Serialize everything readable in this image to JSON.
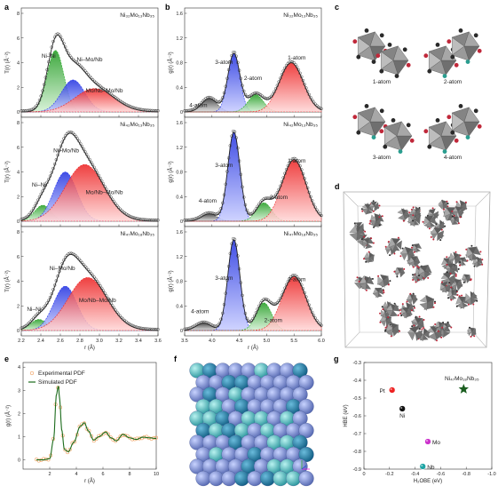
{
  "panel_labels": {
    "a": "a",
    "b": "b",
    "c": "c",
    "d": "d",
    "e": "e",
    "f": "f",
    "g": "g"
  },
  "chart_data": [
    {
      "panel": "a",
      "type": "area",
      "xlabel": "r (Å)",
      "ylabel": "T(r) (Å⁻²)",
      "xlim": [
        2.2,
        3.6
      ],
      "ylim": [
        0,
        8
      ],
      "xticks": [
        "2.2",
        "2.4",
        "2.6",
        "2.8",
        "3.0",
        "3.2",
        "3.4",
        "3.6"
      ],
      "yticks": [
        "0",
        "2",
        "4",
        "6",
        "8"
      ],
      "subplots": [
        {
          "composition": "Ni₃₂Mo₁₃Nb₃₅",
          "total": {
            "peak_x": 2.62,
            "peak_y": 8.0
          },
          "components": [
            {
              "name": "Ni–Ni",
              "color": "#22aa22",
              "center": 2.55,
              "height": 5.0
            },
            {
              "name": "Ni–Mo/Nb",
              "color": "#2233ee",
              "center": 2.73,
              "height": 2.6
            },
            {
              "name": "Mo/Nb–Mo/Nb",
              "color": "#ee2222",
              "center": 2.95,
              "height": 1.9
            }
          ]
        },
        {
          "composition": "Ni₄₂Mo₁₃Nb₃₅",
          "total": {
            "peak_x": 2.75,
            "peak_y": 7.4
          },
          "components": [
            {
              "name": "Ni–Ni",
              "color": "#22aa22",
              "center": 2.42,
              "height": 1.3
            },
            {
              "name": "Ni–Mo/Nb",
              "color": "#2233ee",
              "center": 2.65,
              "height": 4.0
            },
            {
              "name": "Mo/Nb–Mo/Nb",
              "color": "#ee2222",
              "center": 2.85,
              "height": 4.6
            }
          ]
        },
        {
          "composition": "Ni₄₇Mo₁₈Nb₃₅",
          "total": {
            "peak_x": 2.78,
            "peak_y": 7.4
          },
          "components": [
            {
              "name": "Ni–Ni",
              "color": "#22aa22",
              "center": 2.38,
              "height": 0.9
            },
            {
              "name": "Ni–Mo/Nb",
              "color": "#2233ee",
              "center": 2.65,
              "height": 3.6
            },
            {
              "name": "Mo/Nb–Mo/Nb",
              "color": "#ee2222",
              "center": 2.88,
              "height": 4.3
            }
          ]
        }
      ]
    },
    {
      "panel": "b",
      "type": "area",
      "xlabel": "r (Å)",
      "ylabel": "g(r) (Å⁻²)",
      "xlim": [
        3.5,
        6.0
      ],
      "ylim": [
        0,
        1.6
      ],
      "xticks": [
        "3.5",
        "4.0",
        "4.5",
        "5.0",
        "5.5",
        "6.0"
      ],
      "yticks": [
        "0",
        "0.4",
        "0.8",
        "1.2",
        "1.6"
      ],
      "subplots": [
        {
          "composition": "Ni₃₂Mo₁₃Nb₃₅",
          "components": [
            {
              "name": "4-atom",
              "color": "#555555",
              "center": 3.95,
              "height": 0.22
            },
            {
              "name": "3-atom",
              "color": "#2233ee",
              "center": 4.4,
              "height": 0.95
            },
            {
              "name": "2-atom",
              "color": "#22aa22",
              "center": 4.8,
              "height": 0.28
            },
            {
              "name": "1-atom",
              "color": "#ee2222",
              "center": 5.45,
              "height": 0.8
            }
          ]
        },
        {
          "composition": "Ni₄₂Mo₁₃Nb₃₅",
          "components": [
            {
              "name": "4-atom",
              "color": "#555555",
              "center": 3.95,
              "height": 0.12
            },
            {
              "name": "3-atom",
              "color": "#2233ee",
              "center": 4.4,
              "height": 1.45
            },
            {
              "name": "2-atom",
              "color": "#22aa22",
              "center": 4.95,
              "height": 0.3
            },
            {
              "name": "1-atom",
              "color": "#ee2222",
              "center": 5.5,
              "height": 1.0
            }
          ]
        },
        {
          "composition": "Ni₄₇Mo₁₈Nb₃₅",
          "components": [
            {
              "name": "4-atom",
              "color": "#555555",
              "center": 3.85,
              "height": 0.12
            },
            {
              "name": "3-atom",
              "color": "#2233ee",
              "center": 4.4,
              "height": 1.48
            },
            {
              "name": "2-atom",
              "color": "#22aa22",
              "center": 4.95,
              "height": 0.45
            },
            {
              "name": "1-atom",
              "color": "#ee2222",
              "center": 5.5,
              "height": 0.88
            }
          ]
        }
      ]
    },
    {
      "panel": "e",
      "type": "line",
      "xlabel": "r (Å)",
      "ylabel": "g(r) (Å⁻²)",
      "xlim": [
        0,
        10
      ],
      "ylim": [
        -0.4,
        4.2
      ],
      "xticks": [
        "2",
        "4",
        "6",
        "8",
        "10"
      ],
      "yticks": [
        "0",
        "1",
        "2",
        "3",
        "4"
      ],
      "series": [
        {
          "name": "Experimental PDF",
          "color": "#f0a060",
          "style": "open-circles"
        },
        {
          "name": "Simulated PDF",
          "color": "#1b6b1b",
          "style": "line"
        }
      ],
      "x": [
        1.0,
        1.5,
        2.0,
        2.3,
        2.5,
        2.65,
        2.75,
        2.9,
        3.1,
        3.4,
        3.8,
        4.3,
        4.6,
        4.9,
        5.3,
        5.7,
        6.2,
        6.6,
        7.0,
        7.5,
        8.0,
        8.5,
        9.0,
        9.5,
        10.0
      ],
      "y": [
        0,
        0,
        0.05,
        0.9,
        2.8,
        3.2,
        2.6,
        1.3,
        0.45,
        0.35,
        0.75,
        1.45,
        1.6,
        1.25,
        0.85,
        1.0,
        1.2,
        0.95,
        0.82,
        1.1,
        0.95,
        0.88,
        0.98,
        0.95,
        0.92
      ]
    },
    {
      "panel": "g",
      "type": "scatter",
      "xlabel": "H₂OBE (eV)",
      "ylabel": "HBE (eV)",
      "xlim": [
        0,
        -1.0
      ],
      "ylim": [
        -0.9,
        -0.3
      ],
      "xticks": [
        "0",
        "-0.2",
        "-0.4",
        "-0.6",
        "-0.8",
        "-1.0"
      ],
      "yticks": [
        "-0.3",
        "-0.4",
        "-0.5",
        "-0.6",
        "-0.7",
        "-0.8",
        "-0.9"
      ],
      "points": [
        {
          "label": "Pt",
          "x": -0.22,
          "y": -0.455,
          "color": "#ee2222",
          "marker": "circle"
        },
        {
          "label": "Ni",
          "x": -0.3,
          "y": -0.56,
          "color": "#111111",
          "marker": "circle"
        },
        {
          "label": "Mo",
          "x": -0.5,
          "y": -0.745,
          "color": "#cc33cc",
          "marker": "circle"
        },
        {
          "label": "Nb",
          "x": -0.46,
          "y": -0.885,
          "color": "#1fa5a5",
          "marker": "circle"
        },
        {
          "label": "Ni₄₇Mo₁₈Nb₃₅",
          "x": -0.78,
          "y": -0.45,
          "color": "#1b5e20",
          "marker": "star"
        }
      ]
    }
  ],
  "panel_c": {
    "labels": [
      "1-atom",
      "2-atom",
      "3-atom",
      "4-atom"
    ]
  },
  "colors": {
    "ni": "#2a2a2a",
    "mo": "#c0283a",
    "nb": "#2a9d8f",
    "polyhedron": "#8a8a8a",
    "sphere_blue": "#6a7fc0",
    "sphere_teal": "#2aa0a8",
    "sphere_dark": "#1a6f98"
  }
}
